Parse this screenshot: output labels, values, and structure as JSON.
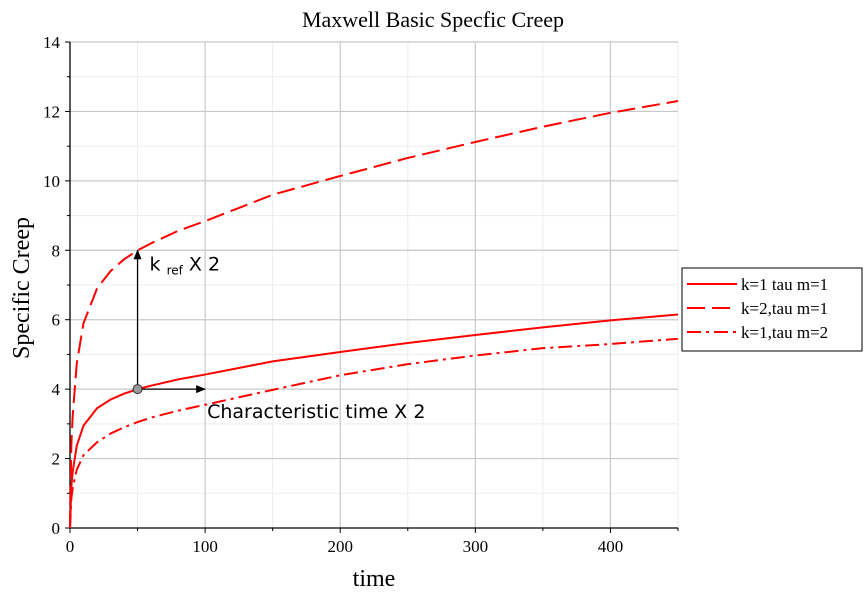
{
  "chart_data": {
    "type": "line",
    "title": "Maxwell Basic Specfic Creep",
    "xlabel": "time",
    "ylabel": "Specific Creep",
    "xlim": [
      0,
      450
    ],
    "ylim": [
      0,
      14
    ],
    "xticks": [
      0,
      100,
      200,
      300,
      400
    ],
    "yticks": [
      0,
      2,
      4,
      6,
      8,
      10,
      12,
      14
    ],
    "grid": true,
    "legend_position": "right",
    "x": [
      0,
      1,
      2,
      5,
      10,
      20,
      30,
      40,
      50,
      60,
      80,
      100,
      150,
      200,
      250,
      300,
      350,
      400,
      450
    ],
    "series": [
      {
        "name": "k=1 tau m=1",
        "style": "solid",
        "color": "#ff0000",
        "values": [
          0,
          1.2,
          1.62,
          2.37,
          2.95,
          3.45,
          3.7,
          3.87,
          4.0,
          4.1,
          4.28,
          4.42,
          4.8,
          5.07,
          5.33,
          5.56,
          5.78,
          5.98,
          6.15
        ]
      },
      {
        "name": "k=2,tau m=1",
        "style": "dashed",
        "color": "#ff0000",
        "values": [
          0,
          2.4,
          3.24,
          4.74,
          5.9,
          6.9,
          7.4,
          7.74,
          8.0,
          8.2,
          8.56,
          8.84,
          9.6,
          10.14,
          10.66,
          11.12,
          11.56,
          11.96,
          12.3
        ]
      },
      {
        "name": "k=1,tau m=2",
        "style": "dashdot",
        "color": "#ff0000",
        "values": [
          0,
          0.85,
          1.15,
          1.68,
          2.1,
          2.47,
          2.72,
          2.9,
          3.05,
          3.18,
          3.38,
          3.55,
          3.98,
          4.4,
          4.72,
          4.97,
          5.18,
          5.3,
          5.45
        ]
      }
    ],
    "annotations": {
      "point": [
        50,
        4
      ],
      "k_label_main": "k",
      "k_label_sub": "ref",
      "k_label_tail": "X 2",
      "time_label": "Characteristic time X 2",
      "arrow_up_to": [
        50,
        8
      ],
      "arrow_right_to": [
        100,
        4
      ]
    }
  }
}
